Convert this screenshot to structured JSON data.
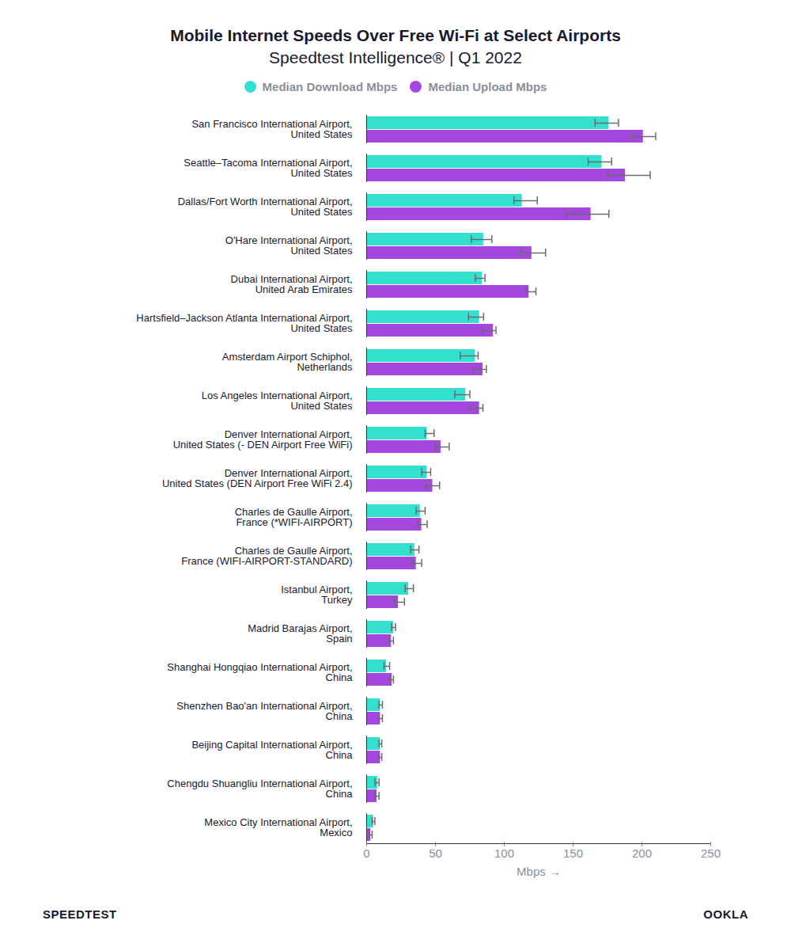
{
  "chart_data": {
    "type": "bar",
    "orientation": "horizontal",
    "title": "Mobile Internet Speeds Over Free Wi-Fi at Select Airports",
    "subtitle": "Speedtest Intelligence® | Q1 2022",
    "x_label": "Mbps",
    "logos": [
      "SPEEDTEST",
      "OOKLA"
    ],
    "legend": "top",
    "grid": false,
    "xlim": [
      0,
      250
    ],
    "xticks": [
      0,
      50,
      100,
      150,
      200,
      250
    ],
    "categories": [
      "San Francisco International Airport,\nUnited States",
      "Seattle–Tacoma International Airport,\nUnited States",
      "Dallas/Fort Worth International Airport,\nUnited States",
      "O'Hare International Airport,\nUnited States",
      "Dubai International Airport,\nUnited Arab Emirates",
      "Hartsfield–Jackson Atlanta International Airport,\nUnited States",
      "Amsterdam Airport Schiphol,\nNetherlands",
      "Los Angeles International Airport,\nUnited States",
      "Denver International Airport,\nUnited States (- DEN Airport Free WiFi)",
      "Denver International Airport,\nUnited States (DEN Airport Free WiFi 2.4)",
      "Charles de Gaulle Airport,\nFrance (*WIFI-AIRPORT)",
      "Charles de Gaulle Airport,\nFrance (WIFI-AIRPORT-STANDARD)",
      "Istanbul Airport,\nTurkey",
      "Madrid Barajas Airport,\nSpain",
      "Shanghai Hongqiao International Airport,\nChina",
      "Shenzhen Bao'an International Airport,\nChina",
      "Beijing Capital International Airport,\nChina",
      "Chengdu Shuangliu International Airport,\nChina",
      "Mexico City International Airport,\nMexico"
    ],
    "series": [
      {
        "name": "Median Download Mbps",
        "color": "#33e0cf",
        "values": [
          176,
          171,
          113,
          85,
          84,
          82,
          79,
          72,
          44,
          44,
          39,
          35,
          30.5,
          19.5,
          14.5,
          10,
          10,
          8,
          5
        ],
        "error_low": [
          166,
          161,
          107,
          76,
          79,
          74,
          68,
          64,
          42.5,
          40,
          36,
          32,
          28,
          18,
          12.6,
          9,
          9,
          6,
          4
        ],
        "error_high": [
          183,
          178,
          124,
          91,
          86,
          85,
          81,
          75,
          49,
          46.5,
          42.5,
          38,
          34,
          21,
          16.7,
          11.5,
          11,
          9,
          6
        ]
      },
      {
        "name": "Median Upload Mbps",
        "color": "#a446e0",
        "values": [
          201,
          188,
          163,
          120,
          118,
          92,
          84.5,
          82,
          54,
          48,
          40,
          36,
          23,
          18,
          18.5,
          10,
          10,
          7.5,
          3
        ],
        "error_low": [
          192.5,
          175,
          145,
          112,
          116,
          84,
          77,
          75,
          50,
          43,
          37,
          33,
          20,
          16,
          16.7,
          9,
          9,
          6,
          2
        ],
        "error_high": [
          210,
          206,
          176,
          130,
          123,
          94,
          87,
          84.5,
          60,
          53,
          44,
          40,
          27.5,
          19.5,
          19.5,
          11.5,
          11,
          9,
          4
        ]
      }
    ]
  }
}
